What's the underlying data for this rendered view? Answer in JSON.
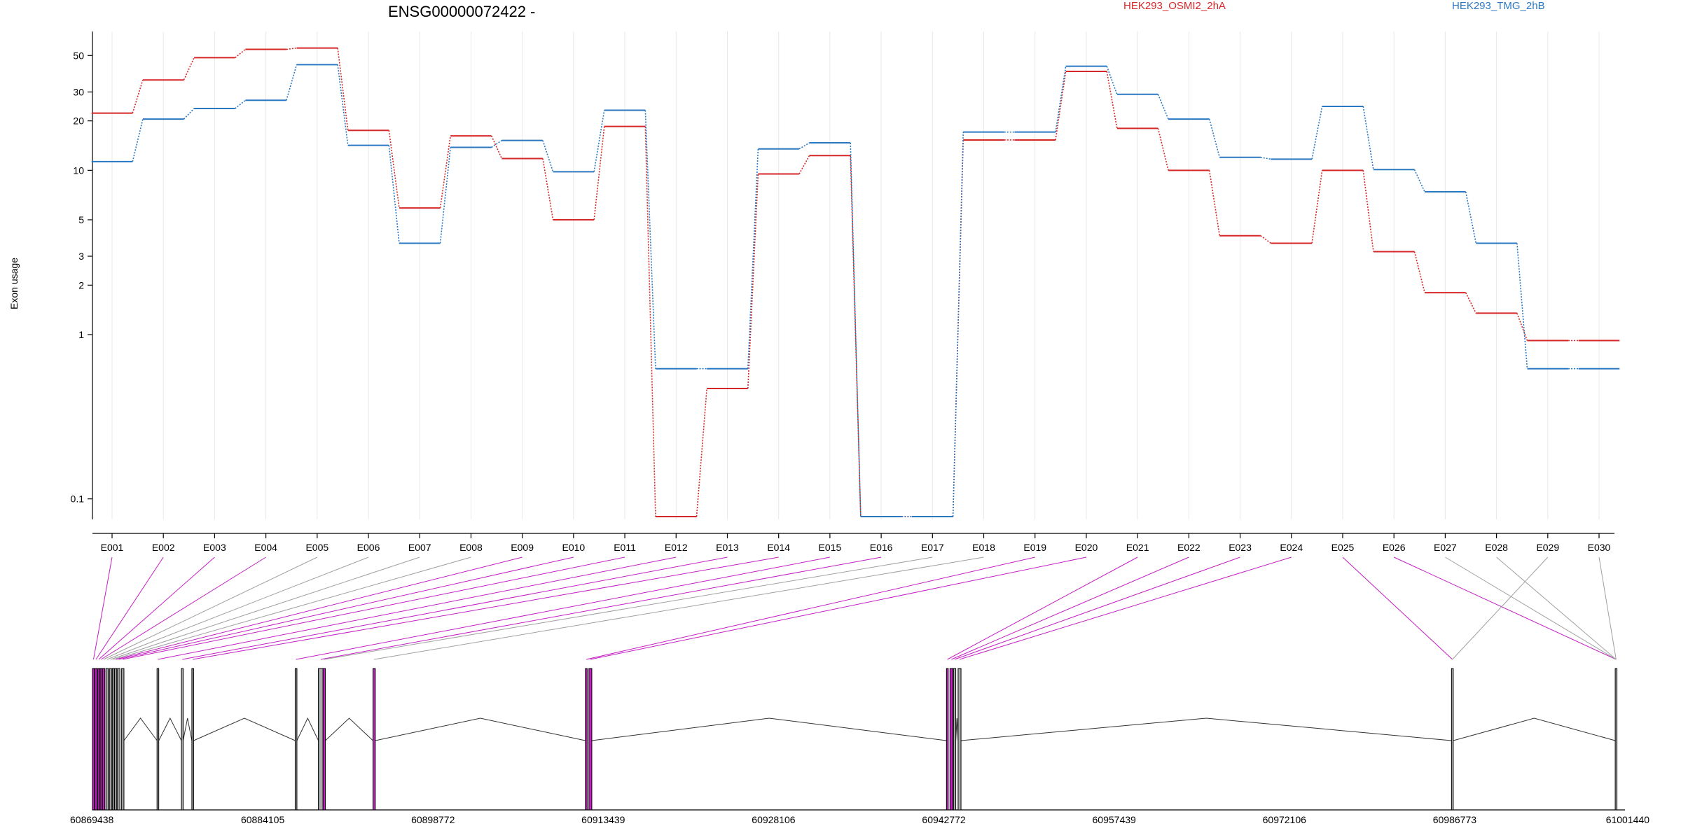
{
  "chart_data": {
    "type": "line",
    "title": "ENSG00000072422 -",
    "ylabel": "Exon usage",
    "yscale": "log",
    "ylim": [
      0.075,
      70
    ],
    "yticks": [
      0.1,
      1,
      2,
      3,
      5,
      10,
      20,
      30,
      50
    ],
    "categories": [
      "E001",
      "E002",
      "E003",
      "E004",
      "E005",
      "E006",
      "E007",
      "E008",
      "E009",
      "E010",
      "E011",
      "E012",
      "E013",
      "E014",
      "E015",
      "E016",
      "E017",
      "E018",
      "E019",
      "E020",
      "E021",
      "E022",
      "E023",
      "E024",
      "E025",
      "E026",
      "E027",
      "E028",
      "E029",
      "E030"
    ],
    "series": [
      {
        "name": "HEK293_OSMI2_2hA",
        "color": "#d62728",
        "values": [
          22.3,
          35.5,
          48.5,
          54.5,
          55.5,
          17.5,
          5.9,
          16.2,
          11.8,
          5.0,
          18.5,
          0.078,
          0.47,
          9.5,
          12.3,
          0.078,
          0.078,
          15.3,
          15.3,
          40.0,
          18.0,
          10.0,
          4.0,
          3.6,
          10.0,
          3.2,
          1.8,
          1.35,
          0.92,
          0.92
        ]
      },
      {
        "name": "HEK293_TMG_2hB",
        "color": "#2b78c2",
        "values": [
          11.3,
          20.5,
          23.8,
          26.7,
          44.0,
          14.2,
          3.6,
          13.8,
          15.2,
          9.8,
          23.2,
          0.62,
          0.62,
          13.5,
          14.7,
          0.078,
          0.078,
          17.1,
          17.1,
          43.0,
          29.0,
          20.5,
          12.0,
          11.7,
          24.5,
          10.1,
          7.4,
          3.6,
          0.62,
          0.62
        ]
      }
    ],
    "gene_model": {
      "coordinate_labels": [
        "60869438",
        "60884105",
        "60898772",
        "60913439",
        "60928106",
        "60942772",
        "60957439",
        "60972106",
        "60986773",
        "61001440"
      ],
      "exon_genomic_start": [
        60869438,
        60869650,
        60869900,
        60870100,
        60870300,
        60870600,
        60870900,
        60871150,
        60871350,
        60871600,
        60871950,
        60875000,
        60877100,
        60878000,
        60886900,
        60888900,
        60889300,
        60893600,
        60911900,
        60912200,
        60943000,
        60943300,
        60943600,
        60944000,
        60986500,
        61000600
      ],
      "exon_width_bp": [
        180,
        180,
        160,
        160,
        200,
        200,
        180,
        160,
        180,
        200,
        200,
        150,
        150,
        150,
        150,
        400,
        200,
        200,
        150,
        250,
        150,
        250,
        200,
        250,
        150,
        150
      ],
      "exon_highlight": [
        true,
        true,
        true,
        true,
        true,
        false,
        false,
        false,
        false,
        false,
        false,
        false,
        false,
        false,
        false,
        false,
        true,
        true,
        true,
        true,
        true,
        true,
        false,
        false,
        false,
        false
      ],
      "exon_map_targets": [
        0,
        1,
        2,
        3,
        4,
        5,
        6,
        7,
        8,
        9,
        10,
        11,
        12,
        13,
        14,
        15,
        16,
        17,
        18,
        19,
        20,
        21,
        22,
        23,
        24,
        25,
        25,
        25,
        24,
        25
      ],
      "connector_highlight": [
        true,
        true,
        true,
        true,
        false,
        false,
        false,
        false,
        true,
        true,
        true,
        true,
        true,
        true,
        true,
        true,
        false,
        false,
        true,
        true,
        true,
        true,
        true,
        true,
        true,
        true,
        false,
        false,
        false,
        false
      ],
      "colors": {
        "highlight": "#c21ec2",
        "plain": "#aaaaaa",
        "line": "#333333",
        "connector_plain": "#a0a0a0"
      }
    }
  },
  "legend": [
    {
      "label": "HEK293_OSMI2_2hA",
      "color": "#d62728"
    },
    {
      "label": "HEK293_TMG_2hB",
      "color": "#2b78c2"
    }
  ]
}
